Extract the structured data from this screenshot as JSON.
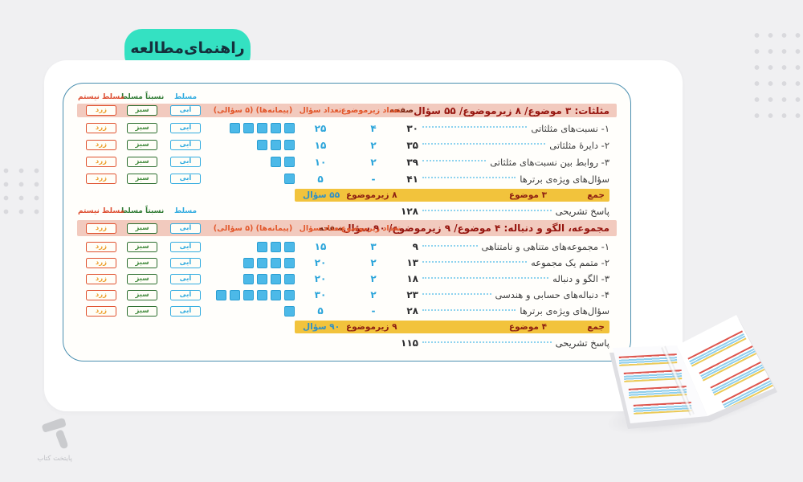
{
  "tab": {
    "label": "راهنمای‌مطالعه"
  },
  "legend": {
    "mastered": "مسلط",
    "somewhat_mastered": "نسبتاً مسلط",
    "not_mastered": "مسلط نیستم"
  },
  "badges": {
    "blue": "آبی",
    "green": "سبز",
    "yellow": "زرد"
  },
  "columns": {
    "page": "صفحه",
    "subtopics": "تعداد زیرموضوع",
    "questions": "تعداد سؤال",
    "modules": "(پیمانه‌ها) (۵ سؤالی)"
  },
  "sections": [
    {
      "title": "مثلثات: ۳ موضوع/ ۸ زیرموضوع/ ۵۵ سؤال",
      "rows": [
        {
          "topic": "۱- نسبت‌های مثلثاتی",
          "page": "۳۰",
          "subtopics": "۴",
          "questions": "۲۵",
          "modules": 5
        },
        {
          "topic": "۲- دایرۀ مثلثاتی",
          "page": "۳۵",
          "subtopics": "۲",
          "questions": "۱۵",
          "modules": 3
        },
        {
          "topic": "۳- روابط بین نسبت‌های مثلثاتی",
          "page": "۳۹",
          "subtopics": "۲",
          "questions": "۱۰",
          "modules": 2
        },
        {
          "topic": "سؤال‌های ویژه‌ی برترها",
          "page": "۴۱",
          "subtopics": "-",
          "questions": "۵",
          "modules": 1
        }
      ],
      "total": {
        "label": "جمع",
        "topics": "۳ موضوع",
        "subtopics": "۸ زیرموضوع",
        "questions": "۵۵ سؤال"
      },
      "answer": {
        "label": "پاسخ تشریحی",
        "page": "۱۲۸"
      }
    },
    {
      "title": "مجموعه، الگو و دنباله: ۴ موضوع/ ۹ زیرموضوع/ ۹۰ سؤال",
      "rows": [
        {
          "topic": "۱- مجموعه‌های متناهی و نامتناهی",
          "page": "۹",
          "subtopics": "۳",
          "questions": "۱۵",
          "modules": 3
        },
        {
          "topic": "۲- متمم یک مجموعه",
          "page": "۱۳",
          "subtopics": "۲",
          "questions": "۲۰",
          "modules": 4
        },
        {
          "topic": "۳- الگو و دنباله",
          "page": "۱۸",
          "subtopics": "۲",
          "questions": "۲۰",
          "modules": 4
        },
        {
          "topic": "۴- دنباله‌های حسابی و هندسی",
          "page": "۲۳",
          "subtopics": "۲",
          "questions": "۳۰",
          "modules": 6
        },
        {
          "topic": "سؤال‌های ویژه‌ی برترها",
          "page": "۲۸",
          "subtopics": "-",
          "questions": "۵",
          "modules": 1
        }
      ],
      "total": {
        "label": "جمع",
        "topics": "۴ موضوع",
        "subtopics": "۹ زیرموضوع",
        "questions": "۹۰ سؤال"
      },
      "answer": {
        "label": "پاسخ تشریحی",
        "page": "۱۱۵"
      }
    }
  ],
  "logo": {
    "text": "پایتخت کتاب"
  },
  "palette": {
    "background": "#f0f0f2",
    "tab_teal": "#34e1c2",
    "band_pink": "#f2cabe",
    "band_yellow": "#f2c33c",
    "title_maroon": "#96150f",
    "header_orange": "#e2572b",
    "square_blue": "#4cb9e8",
    "number_blue": "#2aa4da",
    "badge_blue": "#33ace0",
    "badge_green": "#2c6e2f",
    "badge_red": "#e0512f",
    "table_border": "#4a8fb0"
  }
}
